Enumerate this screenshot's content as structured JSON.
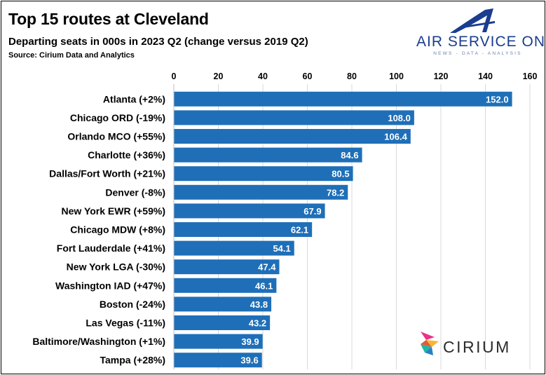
{
  "header": {
    "title": "Top 15 routes at Cleveland",
    "subtitle": "Departing seats in 000s in 2023 Q2 (change versus 2019 Q2)",
    "source": "Source: Cirium Data and Analytics"
  },
  "logos": {
    "air_service_one": {
      "name": "AIR SERVICE ONE",
      "tagline": "NEWS - DATA - ANALYSIS",
      "icon": "stylized-a-icon"
    },
    "cirium": {
      "name": "CIRIUM",
      "icon": "cirium-mark-icon"
    }
  },
  "colors": {
    "bar": "#1f6fb8",
    "bar_label": "#ffffff",
    "grid": "#d9d9d9",
    "aso_blue": "#1a3d8f"
  },
  "chart_data": {
    "type": "bar",
    "orientation": "horizontal",
    "title": "Top 15 routes at Cleveland",
    "subtitle": "Departing seats in 000s in 2023 Q2 (change versus 2019 Q2)",
    "categories": [
      "Atlanta (+2%)",
      "Chicago ORD (-19%)",
      "Orlando MCO (+55%)",
      "Charlotte (+36%)",
      "Dallas/Fort Worth (+21%)",
      "Denver (-8%)",
      "New York EWR (+59%)",
      "Chicago MDW (+8%)",
      "Fort Lauderdale (+41%)",
      "New York LGA (-30%)",
      "Washington IAD (+47%)",
      "Boston (-24%)",
      "Las Vegas (-11%)",
      "Baltimore/Washington (+1%)",
      "Tampa (+28%)"
    ],
    "values": [
      152.0,
      108.0,
      106.4,
      84.6,
      80.5,
      78.2,
      67.9,
      62.1,
      54.1,
      47.4,
      46.1,
      43.8,
      43.2,
      39.9,
      39.6
    ],
    "value_labels": [
      "152.0",
      "108.0",
      "106.4",
      "84.6",
      "80.5",
      "78.2",
      "67.9",
      "62.1",
      "54.1",
      "47.4",
      "46.1",
      "43.8",
      "43.2",
      "39.9",
      "39.6"
    ],
    "xlim": [
      0,
      160
    ],
    "xticks": [
      "0",
      "20",
      "40",
      "60",
      "80",
      "100",
      "120",
      "140",
      "160"
    ],
    "x_axis_position": "top",
    "grid": true
  }
}
